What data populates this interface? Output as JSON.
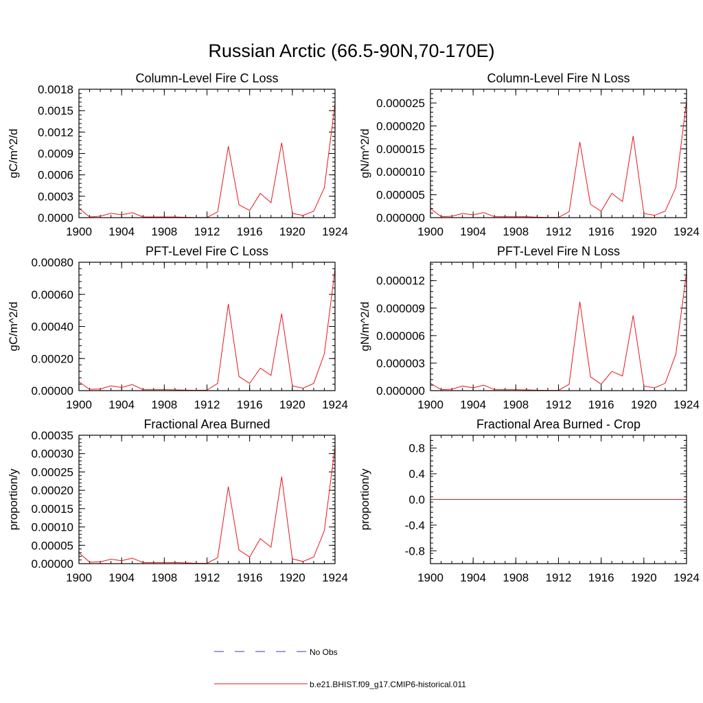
{
  "figure": {
    "title": "Russian Arctic (66.5-90N,70-170E)"
  },
  "chart_data": [
    {
      "type": "line",
      "title": "Column-Level Fire C Loss",
      "xlabel": "",
      "ylabel": "gC/m^2/d",
      "xlim": [
        1900,
        1924
      ],
      "ylim": [
        0,
        0.0018
      ],
      "x_ticks": [
        1900,
        1904,
        1908,
        1912,
        1916,
        1920,
        1924
      ],
      "y_ticks": [
        0,
        0.0003,
        0.0006,
        0.0009,
        0.0012,
        0.0015,
        0.0018
      ],
      "y_tick_labels": [
        "0.0000",
        "0.0003",
        "0.0006",
        "0.0009",
        "0.0012",
        "0.0015",
        "0.0018"
      ],
      "x": [
        1900,
        1901,
        1902,
        1903,
        1904,
        1905,
        1906,
        1907,
        1908,
        1909,
        1910,
        1911,
        1912,
        1913,
        1914,
        1915,
        1916,
        1917,
        1918,
        1919,
        1920,
        1921,
        1922,
        1923,
        1924
      ],
      "series": [
        {
          "name": "b.e21.BHIST.f09_g17.CMIP6-historical.011",
          "values": [
            0.00013,
            1e-05,
            2e-05,
            6e-05,
            4e-05,
            7e-05,
            1e-05,
            1e-05,
            1e-05,
            1e-05,
            5e-06,
            3e-06,
            3e-06,
            8e-05,
            0.001,
            0.00018,
            0.0001,
            0.00034,
            0.00021,
            0.00105,
            6e-05,
            3e-05,
            9e-05,
            0.00042,
            0.0016
          ]
        }
      ]
    },
    {
      "type": "line",
      "title": "Column-Level Fire N Loss",
      "xlabel": "",
      "ylabel": "gN/m^2/d",
      "xlim": [
        1900,
        1924
      ],
      "ylim": [
        0,
        2.8e-05
      ],
      "x_ticks": [
        1900,
        1904,
        1908,
        1912,
        1916,
        1920,
        1924
      ],
      "y_ticks": [
        0,
        5e-06,
        1e-05,
        1.5e-05,
        2e-05,
        2.5e-05
      ],
      "y_tick_labels": [
        "0.000000",
        "0.000005",
        "0.000010",
        "0.000015",
        "0.000020",
        "0.000025"
      ],
      "x": [
        1900,
        1901,
        1902,
        1903,
        1904,
        1905,
        1906,
        1907,
        1908,
        1909,
        1910,
        1911,
        1912,
        1913,
        1914,
        1915,
        1916,
        1917,
        1918,
        1919,
        1920,
        1921,
        1922,
        1923,
        1924
      ],
      "series": [
        {
          "name": "b.e21.BHIST.f09_g17.CMIP6-historical.011",
          "values": [
            2e-06,
            2e-07,
            3e-07,
            9e-07,
            6e-07,
            1.1e-06,
            2e-07,
            2e-07,
            2e-07,
            2e-07,
            1e-07,
            5e-08,
            5e-08,
            1.3e-06,
            1.65e-05,
            2.9e-06,
            1.4e-06,
            5.3e-06,
            3.5e-06,
            1.78e-05,
            9e-07,
            5e-07,
            1.4e-06,
            6.6e-06,
            2.55e-05
          ]
        }
      ]
    },
    {
      "type": "line",
      "title": "PFT-Level Fire C Loss",
      "xlabel": "",
      "ylabel": "gC/m^2/d",
      "xlim": [
        1900,
        1924
      ],
      "ylim": [
        0,
        0.0008
      ],
      "x_ticks": [
        1900,
        1904,
        1908,
        1912,
        1916,
        1920,
        1924
      ],
      "y_ticks": [
        0,
        0.0002,
        0.0004,
        0.0006,
        0.0008
      ],
      "y_tick_labels": [
        "0.00000",
        "0.00020",
        "0.00040",
        "0.00060",
        "0.00080"
      ],
      "x": [
        1900,
        1901,
        1902,
        1903,
        1904,
        1905,
        1906,
        1907,
        1908,
        1909,
        1910,
        1911,
        1912,
        1913,
        1914,
        1915,
        1916,
        1917,
        1918,
        1919,
        1920,
        1921,
        1922,
        1923,
        1924
      ],
      "series": [
        {
          "name": "b.e21.BHIST.f09_g17.CMIP6-historical.011",
          "values": [
            5.5e-05,
            8e-06,
            1e-05,
            3e-05,
            2e-05,
            3.8e-05,
            6e-06,
            6e-06,
            6e-06,
            5e-06,
            3e-06,
            2e-06,
            3e-06,
            4.5e-05,
            0.00054,
            8.8e-05,
            4.5e-05,
            0.00014,
            9.5e-05,
            0.00048,
            3e-05,
            1.5e-05,
            4.5e-05,
            0.00023,
            0.00076
          ]
        }
      ]
    },
    {
      "type": "line",
      "title": "PFT-Level Fire N Loss",
      "xlabel": "",
      "ylabel": "gN/m^2/d",
      "xlim": [
        1900,
        1924
      ],
      "ylim": [
        0,
        1.4e-05
      ],
      "x_ticks": [
        1900,
        1904,
        1908,
        1912,
        1916,
        1920,
        1924
      ],
      "y_ticks": [
        0,
        3e-06,
        6e-06,
        9e-06,
        1.2e-05
      ],
      "y_tick_labels": [
        "0.000000",
        "0.000003",
        "0.000006",
        "0.000009",
        "0.000012"
      ],
      "x": [
        1900,
        1901,
        1902,
        1903,
        1904,
        1905,
        1906,
        1907,
        1908,
        1909,
        1910,
        1911,
        1912,
        1913,
        1914,
        1915,
        1916,
        1917,
        1918,
        1919,
        1920,
        1921,
        1922,
        1923,
        1924
      ],
      "series": [
        {
          "name": "b.e21.BHIST.f09_g17.CMIP6-historical.011",
          "values": [
            8e-07,
            1e-07,
            1.5e-07,
            5e-07,
            3e-07,
            6e-07,
            1e-07,
            1e-07,
            1e-07,
            8e-08,
            5e-08,
            3e-08,
            4e-08,
            7e-07,
            9.7e-06,
            1.5e-06,
            7e-07,
            2.1e-06,
            1.6e-06,
            8.2e-06,
            5e-07,
            3e-07,
            8e-07,
            4e-06,
            1.29e-05
          ]
        }
      ]
    },
    {
      "type": "line",
      "title": "Fractional Area Burned",
      "xlabel": "",
      "ylabel": "proportion/y",
      "xlim": [
        1900,
        1924
      ],
      "ylim": [
        0,
        0.00035
      ],
      "x_ticks": [
        1900,
        1904,
        1908,
        1912,
        1916,
        1920,
        1924
      ],
      "y_ticks": [
        0,
        5e-05,
        0.0001,
        0.00015,
        0.0002,
        0.00025,
        0.0003,
        0.00035
      ],
      "y_tick_labels": [
        "0.00000",
        "0.00005",
        "0.00010",
        "0.00015",
        "0.00020",
        "0.00025",
        "0.00030",
        "0.00035"
      ],
      "x": [
        1900,
        1901,
        1902,
        1903,
        1904,
        1905,
        1906,
        1907,
        1908,
        1909,
        1910,
        1911,
        1912,
        1913,
        1914,
        1915,
        1916,
        1917,
        1918,
        1919,
        1920,
        1921,
        1922,
        1923,
        1924
      ],
      "series": [
        {
          "name": "b.e21.BHIST.f09_g17.CMIP6-historical.011",
          "values": [
            3e-05,
            4e-06,
            5e-06,
            1.2e-05,
            8e-06,
            1.5e-05,
            3e-06,
            3e-06,
            3e-06,
            3e-06,
            2e-06,
            1e-06,
            1e-06,
            1.6e-05,
            0.00021,
            3.7e-05,
            1.8e-05,
            6.8e-05,
            4.5e-05,
            0.000237,
            1.3e-05,
            6e-06,
            1.8e-05,
            9e-05,
            0.00032
          ]
        }
      ]
    },
    {
      "type": "line",
      "title": "Fractional Area Burned - Crop",
      "xlabel": "",
      "ylabel": "proportion/y",
      "xlim": [
        1900,
        1924
      ],
      "ylim": [
        -1,
        1
      ],
      "x_ticks": [
        1900,
        1904,
        1908,
        1912,
        1916,
        1920,
        1924
      ],
      "y_ticks": [
        -0.8,
        -0.4,
        0,
        0.4,
        0.8
      ],
      "y_tick_labels": [
        "-0.8",
        "-0.4",
        "0.0",
        "0.4",
        "0.8"
      ],
      "x": [
        1900,
        1901,
        1902,
        1903,
        1904,
        1905,
        1906,
        1907,
        1908,
        1909,
        1910,
        1911,
        1912,
        1913,
        1914,
        1915,
        1916,
        1917,
        1918,
        1919,
        1920,
        1921,
        1922,
        1923,
        1924
      ],
      "series": [
        {
          "name": "b.e21.BHIST.f09_g17.CMIP6-historical.011",
          "values": [
            0,
            0,
            0,
            0,
            0,
            0,
            0,
            0,
            0,
            0,
            0,
            0,
            0,
            0,
            0,
            0,
            0,
            0,
            0,
            0,
            0,
            0,
            0,
            0,
            0
          ]
        }
      ]
    }
  ],
  "legend": {
    "items": [
      {
        "label": "No Obs",
        "style": "dashed",
        "color": "#3b3bb3"
      },
      {
        "label": "b.e21.BHIST.f09_g17.CMIP6-historical.011",
        "style": "solid",
        "color": "#e8141c"
      }
    ]
  },
  "colors": {
    "series": "#e8141c",
    "obs": "#3b3bb3",
    "axis": "#000000"
  }
}
